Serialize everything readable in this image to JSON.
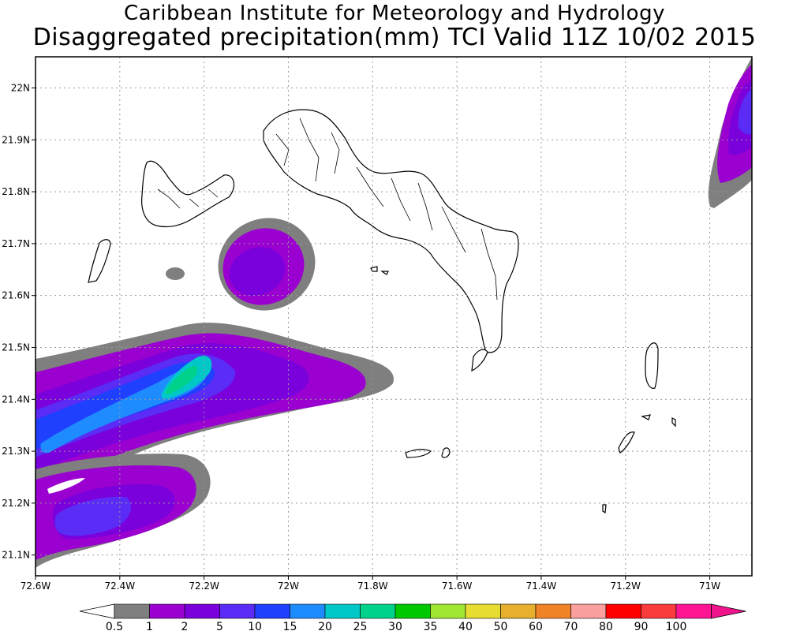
{
  "title": {
    "line1": "Caribbean Institute for Meteorology and Hydrology",
    "line2": "Disaggregated precipitation(mm) TCI Valid 11Z 10/02 2015"
  },
  "map": {
    "lon_range": [
      -72.6,
      -70.9
    ],
    "lat_range": [
      21.06,
      22.06
    ],
    "lon_ticks": [
      {
        "value": -72.6,
        "label": "72.6W"
      },
      {
        "value": -72.4,
        "label": "72.4W"
      },
      {
        "value": -72.2,
        "label": "72.2W"
      },
      {
        "value": -72.0,
        "label": "72W"
      },
      {
        "value": -71.8,
        "label": "71.8W"
      },
      {
        "value": -71.6,
        "label": "71.6W"
      },
      {
        "value": -71.4,
        "label": "71.4W"
      },
      {
        "value": -71.2,
        "label": "71.2W"
      },
      {
        "value": -71.0,
        "label": "71W"
      }
    ],
    "lat_ticks": [
      {
        "value": 21.1,
        "label": "21.1N"
      },
      {
        "value": 21.2,
        "label": "21.2N"
      },
      {
        "value": 21.3,
        "label": "21.3N"
      },
      {
        "value": 21.4,
        "label": "21.4N"
      },
      {
        "value": 21.5,
        "label": "21.5N"
      },
      {
        "value": 21.6,
        "label": "21.6N"
      },
      {
        "value": 21.7,
        "label": "21.7N"
      },
      {
        "value": 21.8,
        "label": "21.8N"
      },
      {
        "value": 21.9,
        "label": "21.9N"
      },
      {
        "value": 22.0,
        "label": "22N"
      }
    ],
    "grid": "dotted"
  },
  "colorbar": {
    "labels": [
      "0.5",
      "1",
      "2",
      "5",
      "10",
      "15",
      "20",
      "25",
      "30",
      "35",
      "40",
      "50",
      "60",
      "70",
      "80",
      "90",
      "100"
    ],
    "colors": [
      "#7f7f7f",
      "#9a00d0",
      "#7a00dc",
      "#5a2cf5",
      "#2040ff",
      "#1e8cff",
      "#00c8c8",
      "#00d28c",
      "#00c800",
      "#a0e632",
      "#e6dc32",
      "#e6af2d",
      "#f08228",
      "#fa9e9e",
      "#ff0000",
      "#fa3c3c",
      "#ff1493"
    ],
    "under_color": "#ffffff",
    "over_color": "#f0148c"
  },
  "chart_data": {
    "type": "heatmap",
    "title": "Disaggregated precipitation(mm) TCI Valid 11Z 10/02 2015",
    "units": "mm",
    "levels": [
      0.5,
      1,
      2,
      5,
      10,
      15,
      20,
      25,
      30,
      35,
      40,
      50,
      60,
      70,
      80,
      90,
      100
    ],
    "xlim": [
      -72.6,
      -70.9
    ],
    "ylim": [
      21.06,
      22.06
    ],
    "xlabel": "",
    "ylabel": ""
  }
}
